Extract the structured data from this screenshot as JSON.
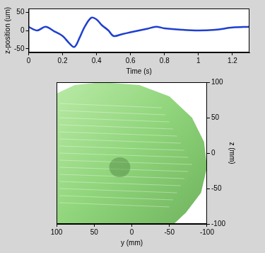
{
  "chart_data": [
    {
      "type": "line",
      "x_label": "Time (s)",
      "y_label": "z-position (um)",
      "x": [
        0,
        0.05,
        0.1,
        0.15,
        0.2,
        0.24,
        0.27,
        0.3,
        0.33,
        0.37,
        0.4,
        0.43,
        0.47,
        0.5,
        0.55,
        0.6,
        0.65,
        0.7,
        0.75,
        0.8,
        0.9,
        1.0,
        1.1,
        1.2,
        1.3
      ],
      "values": [
        10,
        0,
        10,
        -2,
        -15,
        -35,
        -45,
        -20,
        10,
        35,
        30,
        15,
        0,
        -15,
        -10,
        -5,
        0,
        5,
        10,
        6,
        2,
        0,
        2,
        8,
        10
      ],
      "color": "#1f3fd0",
      "xlim": [
        0,
        1.3
      ],
      "xticks": [
        0,
        0.2,
        0.4,
        0.6,
        0.8,
        1,
        1.2
      ],
      "ylim": [
        -60,
        60
      ],
      "yticks": [
        -50,
        0,
        50
      ]
    },
    {
      "type": "surface",
      "x_label": "y (mm)",
      "y_label": "z (mm)",
      "color": "#8fd47a",
      "xlim": [
        100,
        -100
      ],
      "xticks": [
        100,
        50,
        0,
        -50,
        -100
      ],
      "ylim": [
        -100,
        100
      ],
      "yticks": [
        -100,
        -50,
        0,
        50,
        100
      ]
    }
  ]
}
